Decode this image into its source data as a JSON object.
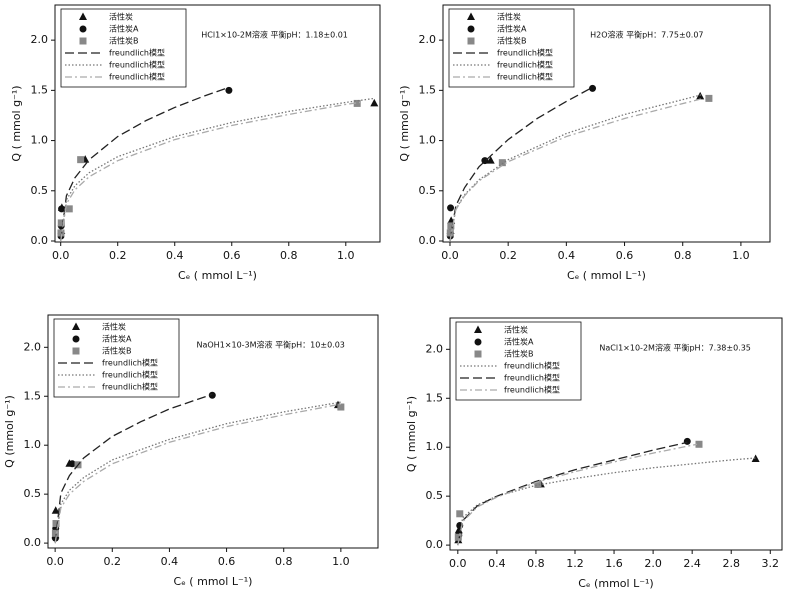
{
  "chart_data": [
    {
      "type": "scatter",
      "annotation": "HCl1×10-2M溶液 平衡pH：1.18±0.01",
      "x_label": "Cₑ ( mmol L⁻¹)",
      "y_label": "Q ( mmol g⁻¹)",
      "legend": "upper left",
      "xlim": [
        -0.02,
        1.12
      ],
      "ylim": [
        -0.01,
        2.35
      ],
      "xticks": [
        {
          "value": 0,
          "label": "0.0"
        },
        0.2,
        0.4,
        0.6,
        0.8,
        {
          "value": 1,
          "label": "1.0"
        }
      ],
      "yticks": [
        {
          "value": 0,
          "label": "0.0"
        },
        0.5,
        {
          "value": 1,
          "label": "1.0"
        },
        1.5,
        {
          "value": 2,
          "label": "2.0"
        }
      ],
      "series": [
        {
          "name": "活性炭",
          "marker": "triangle",
          "color": "#111111",
          "x": [
            0.002,
            0.004,
            0.086,
            1.1
          ],
          "values": [
            0.1,
            0.33,
            0.81,
            1.37
          ]
        },
        {
          "name": "活性炭A",
          "marker": "circle",
          "color": "#111111",
          "x": [
            0.001,
            0.002,
            0.003,
            0.59
          ],
          "values": [
            0.05,
            0.15,
            0.32,
            1.5
          ]
        },
        {
          "name": "活性炭B",
          "marker": "square",
          "color": "#888888",
          "x": [
            0.001,
            0.002,
            0.03,
            0.07,
            1.04
          ],
          "values": [
            0.08,
            0.18,
            0.32,
            0.81,
            1.37
          ]
        },
        {
          "name": "freundlich模型",
          "style": "dashed",
          "color": "#222222",
          "x": [
            0,
            0.02,
            0.05,
            0.1,
            0.2,
            0.3,
            0.4,
            0.5,
            0.58
          ],
          "values": [
            0,
            0.45,
            0.63,
            0.81,
            1.04,
            1.2,
            1.33,
            1.44,
            1.52
          ]
        },
        {
          "name": "freundlich模型",
          "style": "dotted",
          "color": "#777777",
          "x": [
            0,
            0.02,
            0.05,
            0.1,
            0.2,
            0.4,
            0.6,
            0.8,
            1.0,
            1.1
          ],
          "values": [
            0,
            0.41,
            0.55,
            0.68,
            0.84,
            1.04,
            1.18,
            1.29,
            1.38,
            1.42
          ]
        },
        {
          "name": "freundlich模型",
          "style": "dashdot",
          "color": "#aaaaaa",
          "x": [
            0,
            0.02,
            0.05,
            0.1,
            0.2,
            0.4,
            0.6,
            0.8,
            1.0,
            1.05
          ],
          "values": [
            0,
            0.37,
            0.51,
            0.64,
            0.8,
            1.01,
            1.15,
            1.26,
            1.36,
            1.38
          ]
        }
      ]
    },
    {
      "type": "scatter",
      "annotation": "H2O溶液 平衡pH：7.75±0.07",
      "x_label": "Cₑ ( mmol L⁻¹)",
      "y_label": "Q ( mmol g⁻¹)",
      "legend": "upper left",
      "xlim": [
        -0.024,
        1.1
      ],
      "ylim": [
        -0.01,
        2.35
      ],
      "xticks": [
        {
          "value": 0,
          "label": "0.0"
        },
        0.2,
        0.4,
        0.6,
        0.8,
        {
          "value": 1,
          "label": "1.0"
        }
      ],
      "yticks": [
        {
          "value": 0,
          "label": "0.0"
        },
        0.5,
        {
          "value": 1,
          "label": "1.0"
        },
        1.5,
        {
          "value": 2,
          "label": "2.0"
        }
      ],
      "series": [
        {
          "name": "活性炭",
          "marker": "triangle",
          "color": "#111111",
          "x": [
            0.002,
            0.004,
            0.14,
            0.86
          ],
          "values": [
            0.1,
            0.2,
            0.8,
            1.44
          ]
        },
        {
          "name": "活性炭A",
          "marker": "circle",
          "color": "#111111",
          "x": [
            0.001,
            0.002,
            0.12,
            0.49
          ],
          "values": [
            0.05,
            0.33,
            0.8,
            1.52
          ]
        },
        {
          "name": "活性炭B",
          "marker": "square",
          "color": "#888888",
          "x": [
            0.001,
            0.003,
            0.18,
            0.89
          ],
          "values": [
            0.08,
            0.15,
            0.78,
            1.42
          ]
        },
        {
          "name": "freundlich模型",
          "style": "dashed",
          "color": "#222222",
          "x": [
            0,
            0.02,
            0.05,
            0.1,
            0.2,
            0.3,
            0.4,
            0.49
          ],
          "values": [
            0,
            0.35,
            0.53,
            0.74,
            1.01,
            1.22,
            1.39,
            1.53
          ]
        },
        {
          "name": "freundlich模型",
          "style": "dotted",
          "color": "#777777",
          "x": [
            0,
            0.02,
            0.05,
            0.1,
            0.2,
            0.4,
            0.6,
            0.87
          ],
          "values": [
            0,
            0.32,
            0.46,
            0.61,
            0.81,
            1.07,
            1.26,
            1.46
          ]
        },
        {
          "name": "freundlich模型",
          "style": "dashdot",
          "color": "#aaaaaa",
          "x": [
            0,
            0.02,
            0.05,
            0.1,
            0.2,
            0.4,
            0.6,
            0.87
          ],
          "values": [
            0,
            0.31,
            0.45,
            0.6,
            0.79,
            1.04,
            1.22,
            1.42
          ]
        }
      ]
    },
    {
      "type": "scatter",
      "annotation": "NaOH1×10-3M溶液 平衡pH：10±0.03",
      "x_label": "Cₑ ( mmol L⁻¹)",
      "y_label": "Q (mmol g⁻¹)",
      "legend": "upper left",
      "xlim": [
        -0.025,
        1.13
      ],
      "ylim": [
        -0.05,
        2.33
      ],
      "xticks": [
        {
          "value": 0,
          "label": "0.0"
        },
        0.2,
        0.4,
        0.6,
        0.8,
        {
          "value": 1,
          "label": "1.0"
        }
      ],
      "yticks": [
        {
          "value": 0,
          "label": "0.0"
        },
        0.5,
        {
          "value": 1,
          "label": "1.0"
        },
        1.5,
        {
          "value": 2,
          "label": "2.0"
        }
      ],
      "series": [
        {
          "name": "活性炭",
          "marker": "triangle",
          "color": "#111111",
          "x": [
            0.001,
            0.002,
            0.05,
            0.99
          ],
          "values": [
            0.08,
            0.33,
            0.81,
            1.41
          ]
        },
        {
          "name": "活性炭A",
          "marker": "circle",
          "color": "#111111",
          "x": [
            0.001,
            0.002,
            0.06,
            0.55
          ],
          "values": [
            0.05,
            0.15,
            0.81,
            1.51
          ]
        },
        {
          "name": "活性炭B",
          "marker": "square",
          "color": "#888888",
          "x": [
            0.001,
            0.003,
            0.08,
            1.0
          ],
          "values": [
            0.1,
            0.2,
            0.8,
            1.39
          ]
        },
        {
          "name": "freundlich模型",
          "style": "dashed",
          "color": "#222222",
          "x": [
            0,
            0.02,
            0.05,
            0.1,
            0.2,
            0.3,
            0.4,
            0.55
          ],
          "values": [
            0,
            0.51,
            0.69,
            0.87,
            1.09,
            1.24,
            1.37,
            1.52
          ]
        },
        {
          "name": "freundlich模型",
          "style": "dotted",
          "color": "#777777",
          "x": [
            0,
            0.02,
            0.05,
            0.1,
            0.2,
            0.4,
            0.6,
            0.8,
            1.0
          ],
          "values": [
            0,
            0.4,
            0.54,
            0.67,
            0.85,
            1.06,
            1.22,
            1.34,
            1.44
          ]
        },
        {
          "name": "freundlich模型",
          "style": "dashdot",
          "color": "#aaaaaa",
          "x": [
            0,
            0.02,
            0.05,
            0.1,
            0.2,
            0.4,
            0.6,
            0.8,
            1.0
          ],
          "values": [
            0,
            0.36,
            0.5,
            0.63,
            0.81,
            1.03,
            1.19,
            1.31,
            1.42
          ]
        }
      ]
    },
    {
      "type": "scatter",
      "annotation": "NaCl1×10-2M溶液 平衡pH：7.38±0.35",
      "x_label": "Cₑ (mmol L⁻¹)",
      "y_label": "Q ( mmol g⁻¹)",
      "legend": "upper left",
      "xlim": [
        -0.08,
        3.32
      ],
      "ylim": [
        -0.05,
        2.32
      ],
      "xticks": [
        {
          "value": 0,
          "label": "0.0"
        },
        0.4,
        0.8,
        1.2,
        1.6,
        {
          "value": 2,
          "label": "2.0"
        },
        2.4,
        2.8,
        3.2
      ],
      "yticks": [
        {
          "value": 0,
          "label": "0.0"
        },
        0.5,
        {
          "value": 1,
          "label": "1.0"
        },
        1.5,
        {
          "value": 2,
          "label": "2.0"
        }
      ],
      "series": [
        {
          "name": "活性炭",
          "marker": "triangle",
          "color": "#111111",
          "x": [
            0.005,
            0.01,
            0.85,
            3.05
          ],
          "values": [
            0.05,
            0.15,
            0.62,
            0.88
          ]
        },
        {
          "name": "活性炭A",
          "marker": "circle",
          "color": "#111111",
          "x": [
            0.01,
            0.02,
            0.82,
            2.35
          ],
          "values": [
            0.1,
            0.2,
            0.62,
            1.06
          ]
        },
        {
          "name": "活性炭B",
          "marker": "square",
          "color": "#888888",
          "x": [
            0.005,
            0.02,
            0.82,
            2.47
          ],
          "values": [
            0.08,
            0.32,
            0.62,
            1.03
          ]
        },
        {
          "name": "freundlich模型",
          "style": "dotted",
          "color": "#777777",
          "x": [
            0,
            0.05,
            0.2,
            0.4,
            0.8,
            1.2,
            1.6,
            2.0,
            2.4,
            2.8,
            3.05
          ],
          "values": [
            0,
            0.28,
            0.41,
            0.5,
            0.61,
            0.68,
            0.74,
            0.79,
            0.83,
            0.87,
            0.89
          ]
        },
        {
          "name": "freundlich模型",
          "style": "dashed",
          "color": "#222222",
          "x": [
            0,
            0.05,
            0.2,
            0.4,
            0.8,
            1.2,
            1.6,
            2.0,
            2.35
          ],
          "values": [
            0,
            0.25,
            0.4,
            0.5,
            0.65,
            0.77,
            0.87,
            0.97,
            1.05
          ]
        },
        {
          "name": "freundlich模型",
          "style": "dashdot",
          "color": "#aaaaaa",
          "x": [
            0,
            0.05,
            0.2,
            0.4,
            0.8,
            1.2,
            1.6,
            2.0,
            2.45
          ],
          "values": [
            0,
            0.24,
            0.39,
            0.49,
            0.64,
            0.75,
            0.85,
            0.94,
            1.03
          ]
        }
      ]
    }
  ]
}
